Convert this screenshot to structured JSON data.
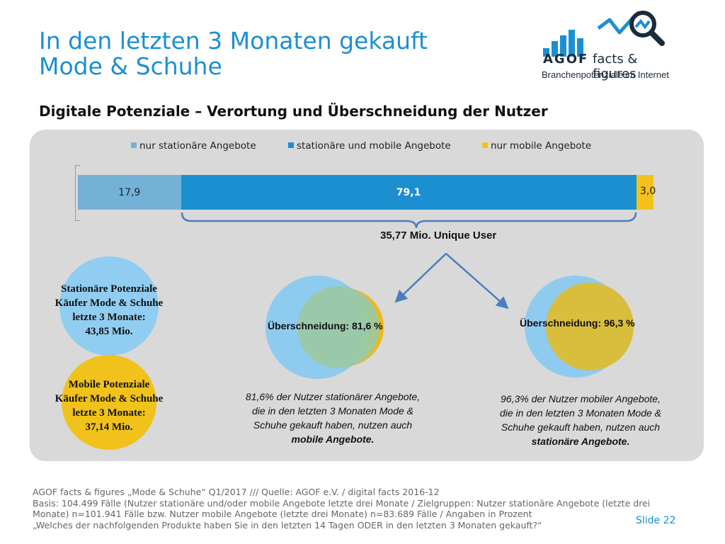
{
  "title": {
    "line1": "In den letzten 3 Monaten gekauft",
    "line2": "Mode & Schuhe"
  },
  "logo": {
    "word": "AGOF",
    "tagline": "facts & figures",
    "subline": "Branchenpotenziale im Internet",
    "bars_icon": "bar-chart-icon",
    "magnifier_icon": "magnifier-icon"
  },
  "subtitle": "Digitale Potenziale – Verortung und Überschneidung der Nutzer",
  "chart_data": {
    "type": "bar",
    "orientation": "horizontal-stacked",
    "categories": [
      ""
    ],
    "series": [
      {
        "name": "nur stationäre Angebote",
        "values": [
          17.9
        ],
        "label": "17,9",
        "color": "#74b1d7"
      },
      {
        "name": "stationäre und mobile Angebote",
        "values": [
          79.1
        ],
        "label": "79,1",
        "color": "#1c8fd1"
      },
      {
        "name": "nur mobile Angebote",
        "values": [
          3.0
        ],
        "label": "3,0",
        "color": "#f5c21b"
      }
    ],
    "xlim": [
      0,
      100
    ],
    "legend": "top"
  },
  "unique_user": "35,77 Mio. Unique User",
  "stationary_circle": {
    "lines": [
      "Stationäre Potenziale",
      "Käufer Mode & Schuhe",
      "letzte 3 Monate:",
      "43,85 Mio."
    ],
    "color": "#90cdf0"
  },
  "mobile_circle": {
    "lines": [
      "Mobile Potenziale",
      "Käufer Mode & Schuhe",
      "letzte 3 Monate:",
      "37,14 Mio."
    ],
    "color": "#f0c21b"
  },
  "venn_left": {
    "label": "Überschneidung: 81,6 %"
  },
  "venn_right": {
    "label": "Überschneidung: 96,3 %"
  },
  "note_left": {
    "lines": [
      "81,6% der Nutzer stationärer Angebote,",
      "die in den letzten 3 Monaten Mode &",
      "Schuhe gekauft haben, nutzen auch"
    ],
    "bold": "mobile Angebote."
  },
  "note_right": {
    "lines": [
      "96,3% der Nutzer mobiler Angebote,",
      "die in den letzten 3 Monaten Mode &",
      "Schuhe gekauft haben, nutzen auch"
    ],
    "bold": "stationäre Angebote."
  },
  "footer": {
    "line1": "AGOF facts & figures „Mode & Schuhe“ Q1/2017 /// Quelle: AGOF e.V. / digital facts 2016-12",
    "line2": "Basis: 104.499 Fälle (Nutzer stationäre und/oder mobile Angebote letzte drei Monate / Zielgruppen: Nutzer stationäre Angebote (letzte drei",
    "line3": "Monate) n=101.941 Fälle bzw. Nutzer mobile Angebote (letzte drei Monate) n=83.689 Fälle / Angaben in Prozent",
    "line4": "„Welches der nachfolgenden Produkte haben Sie in den letzten 14 Tagen ODER in den letzten 3 Monaten gekauft?“"
  },
  "slide_number": "Slide 22"
}
